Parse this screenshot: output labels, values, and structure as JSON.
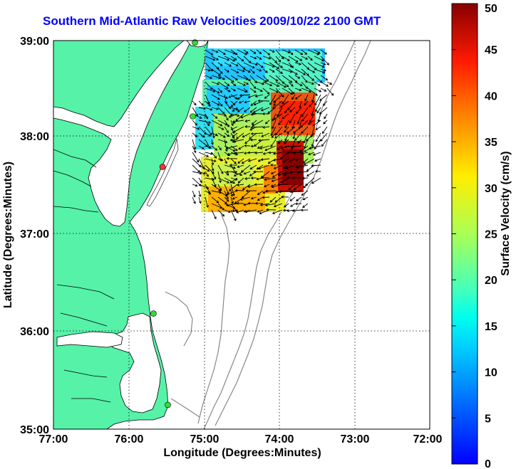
{
  "title": "Southern Mid-Atlantic Raw Velocities 2009/10/22 2100 GMT",
  "axes": {
    "xlabel": "Longitude (Degrees:Minutes)",
    "ylabel": "Latitude (Degrees:Minutes)",
    "x_ticks": [
      "77:00",
      "76:00",
      "75:00",
      "74:00",
      "73:00",
      "72:00"
    ],
    "y_ticks": [
      "39:00",
      "38:00",
      "37:00",
      "36:00",
      "35:00"
    ],
    "x_range": [
      -77,
      -72
    ],
    "y_range": [
      35,
      39
    ],
    "grid": "dotted"
  },
  "colorbar": {
    "label": "Surface Velocity (cm/s)",
    "ticks": [
      "0",
      "5",
      "10",
      "15",
      "20",
      "25",
      "30",
      "35",
      "40",
      "45",
      "50"
    ],
    "range": [
      0,
      50
    ],
    "colormap": "jet"
  },
  "colors": {
    "land": "#55f2a8",
    "water": "#ffffff",
    "title": "#0000ff",
    "bathymetry": "#888888",
    "station_marker": "#33dd33"
  },
  "stations": [
    {
      "lon": -75.12,
      "lat": 38.98,
      "color": "#33dd33"
    },
    {
      "lon": -75.15,
      "lat": 38.22,
      "color": "#33dd33"
    },
    {
      "lon": -75.55,
      "lat": 37.7,
      "color": "#ff3333"
    },
    {
      "lon": -75.67,
      "lat": 36.19,
      "color": "#33dd33"
    },
    {
      "lon": -75.48,
      "lat": 35.25,
      "color": "#33dd33"
    }
  ]
}
